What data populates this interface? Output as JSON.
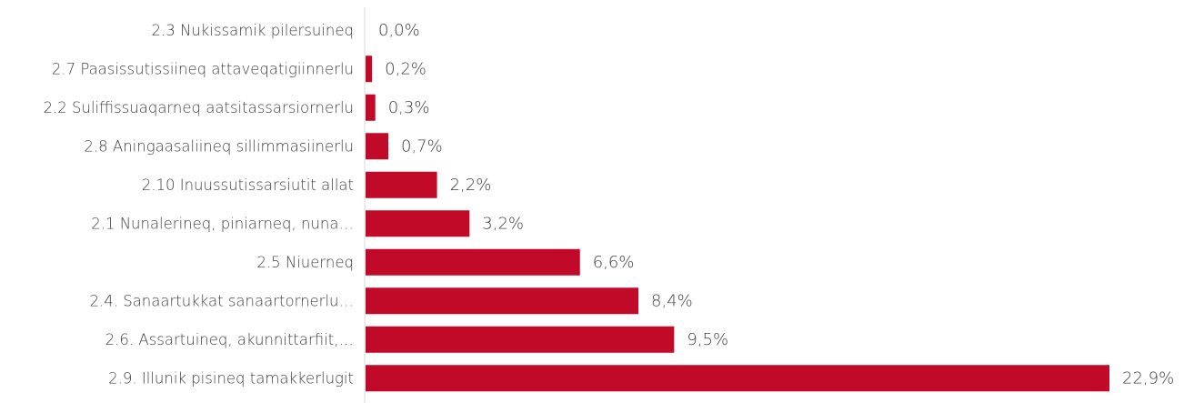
{
  "chart_data": {
    "type": "bar",
    "orientation": "horizontal",
    "categories": [
      "2.3 Nukissamik pilersuineq",
      "2.7 Paasissutissiineq attaveqatigiinnerlu",
      "2.2 Suliffissuaqarneq aatsitassarsiornerlu",
      "2.8 Aningaasaliineq sillimmasiinerlu",
      "2.10 Inuussutissarsiutit allat",
      "2.1 Nunalerineq, piniarneq, nuna…",
      "2.5 Niuerneq",
      "2.4. Sanaartukkat sanaartornerlu…",
      "2.6. Assartuineq, akunnittarfiit,…",
      "2.9. Illunik pisineq tamakkerlugit"
    ],
    "values": [
      0.0,
      0.2,
      0.3,
      0.7,
      2.2,
      3.2,
      6.6,
      8.4,
      9.5,
      22.9
    ],
    "value_labels": [
      "0,0%",
      "0,2%",
      "0,3%",
      "0,7%",
      "2,2%",
      "3,2%",
      "6,6%",
      "8,4%",
      "9,5%",
      "22,9%"
    ],
    "xlim": [
      0,
      22.9
    ],
    "bar_color": "#C00A28",
    "axis_color": "#D9D9D9",
    "grid": false,
    "legend": "none"
  }
}
